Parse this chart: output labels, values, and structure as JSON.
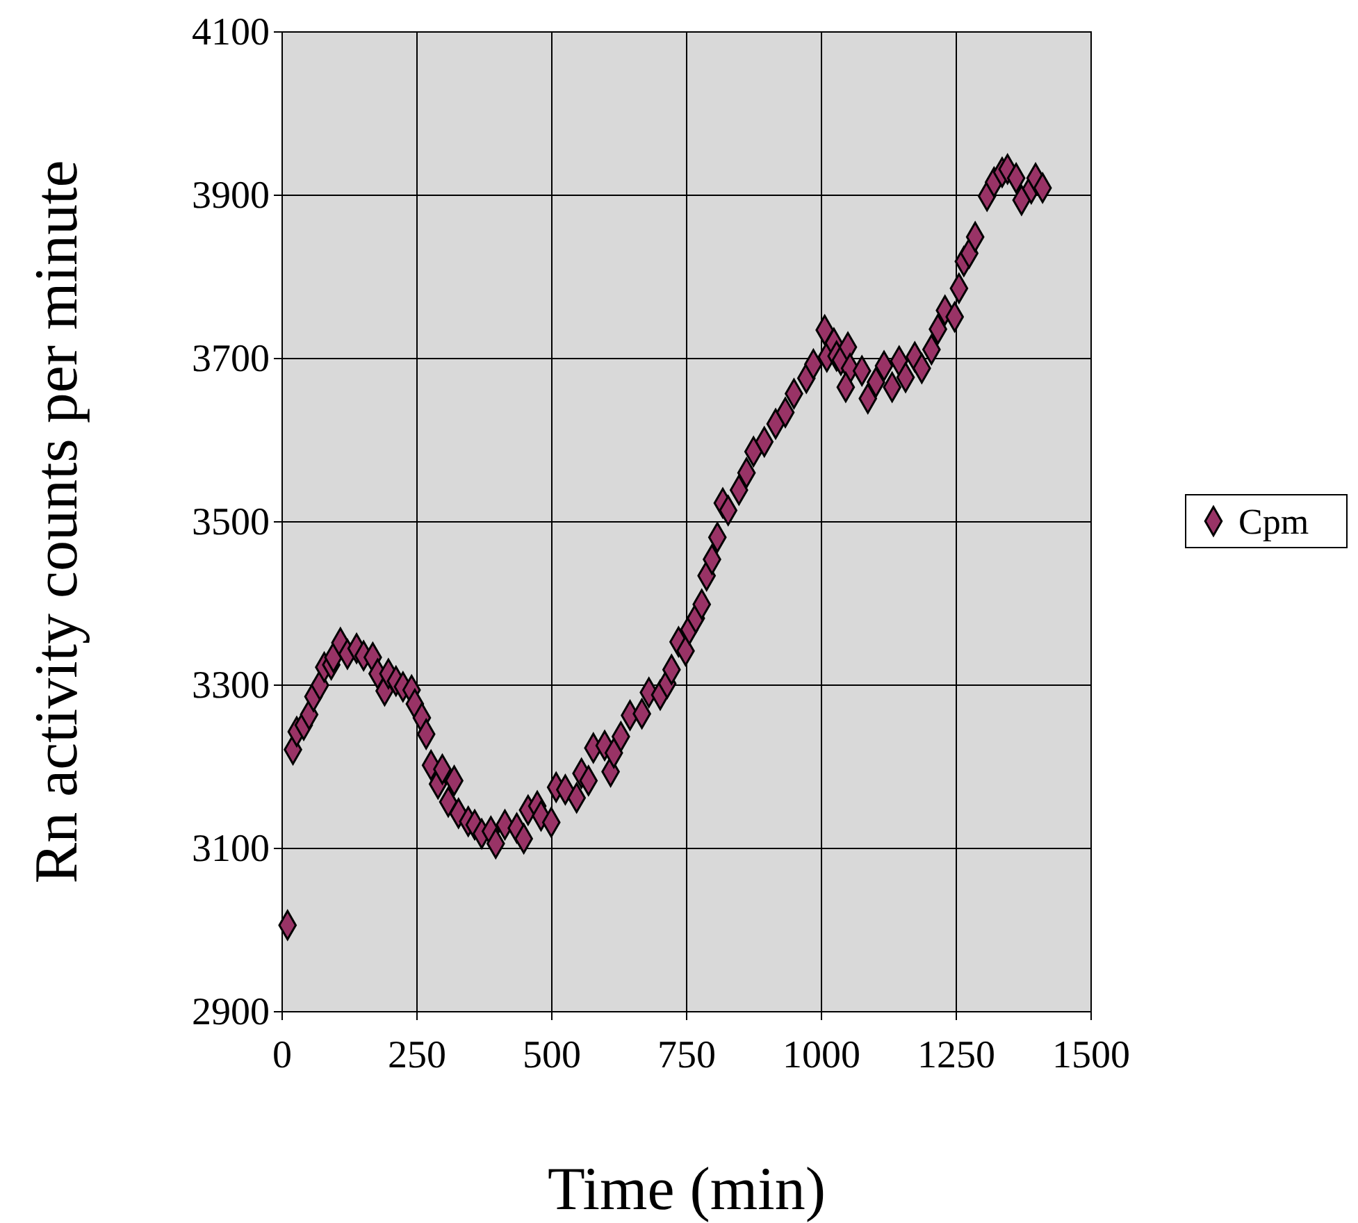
{
  "chart_data": {
    "type": "scatter",
    "xlabel": "Time (min)",
    "ylabel": "Rn activity counts per minute",
    "x": [
      10,
      20,
      27,
      40,
      50,
      58,
      70,
      78,
      91,
      95,
      108,
      121,
      138,
      151,
      168,
      177,
      190,
      197,
      211,
      224,
      240,
      246,
      259,
      267,
      276,
      289,
      297,
      308,
      319,
      327,
      345,
      357,
      370,
      387,
      396,
      413,
      435,
      448,
      456,
      473,
      480,
      499,
      508,
      525,
      546,
      555,
      568,
      577,
      598,
      609,
      615,
      628,
      645,
      667,
      680,
      701,
      714,
      722,
      735,
      748,
      755,
      767,
      778,
      787,
      797,
      807,
      817,
      827,
      847,
      861,
      874,
      894,
      915,
      933,
      949,
      972,
      985,
      1006,
      1010,
      1023,
      1028,
      1036,
      1049,
      1053,
      1045,
      1075,
      1086,
      1101,
      1116,
      1131,
      1144,
      1156,
      1173,
      1186,
      1204,
      1216,
      1229,
      1247,
      1255,
      1264,
      1274,
      1285,
      1307,
      1320,
      1335,
      1345,
      1361,
      1371,
      1389,
      1397,
      1410
    ],
    "series": [
      {
        "name": "Cpm",
        "color": "#993366",
        "values": [
          3006,
          3221,
          3243,
          3251,
          3264,
          3286,
          3300,
          3322,
          3325,
          3334,
          3352,
          3338,
          3345,
          3336,
          3334,
          3314,
          3293,
          3314,
          3305,
          3298,
          3294,
          3277,
          3260,
          3240,
          3202,
          3179,
          3197,
          3157,
          3183,
          3143,
          3133,
          3129,
          3118,
          3121,
          3106,
          3129,
          3125,
          3112,
          3147,
          3152,
          3140,
          3132,
          3175,
          3172,
          3162,
          3192,
          3183,
          3223,
          3226,
          3194,
          3217,
          3237,
          3263,
          3265,
          3291,
          3288,
          3302,
          3319,
          3353,
          3342,
          3368,
          3382,
          3399,
          3434,
          3454,
          3481,
          3523,
          3514,
          3539,
          3560,
          3586,
          3598,
          3620,
          3634,
          3657,
          3676,
          3693,
          3735,
          3702,
          3719,
          3703,
          3698,
          3714,
          3688,
          3665,
          3685,
          3651,
          3671,
          3691,
          3665,
          3697,
          3677,
          3702,
          3688,
          3711,
          3736,
          3759,
          3751,
          3786,
          3819,
          3829,
          3849,
          3899,
          3916,
          3928,
          3932,
          3921,
          3894,
          3908,
          3921,
          3909
        ]
      }
    ],
    "xlim": [
      0,
      1500
    ],
    "xticks": [
      0,
      250,
      500,
      750,
      1000,
      1250,
      1500
    ],
    "ylim": [
      2900,
      4100
    ],
    "yticks": [
      2900,
      3100,
      3300,
      3500,
      3700,
      3900,
      4100
    ],
    "grid": true,
    "legend": "right",
    "marker": "diamond"
  }
}
